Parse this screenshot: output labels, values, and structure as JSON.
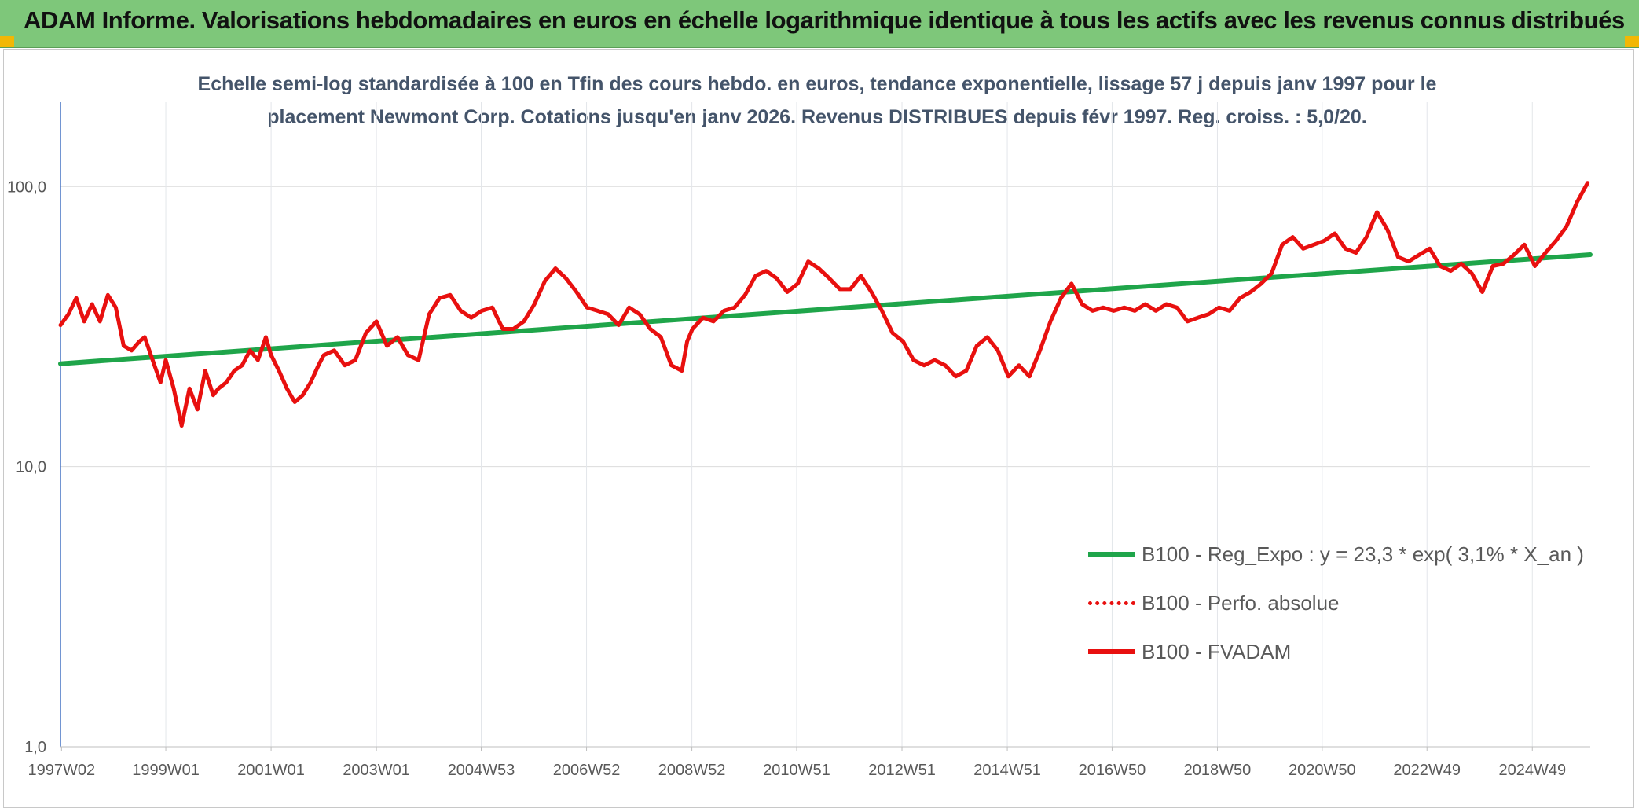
{
  "banner": {
    "title": "ADAM Informe. Valorisations hebdomadaires en euros en échelle logarithmique identique à tous les actifs avec les revenus connus distribués",
    "background": "#7ec77a",
    "corner_color": "#f2b705"
  },
  "subtitle": {
    "line1": "Echelle semi-log standardisée à 100 en Tfin des cours hebdo. en euros, tendance exponentielle, lissage 57 j depuis janv 1997 pour le",
    "line2": "placement Newmont Corp. Cotations jusqu'en janv 2026. Revenus DISTRIBUES depuis févr 1997. Reg. croiss. : 5,0/20."
  },
  "legend": [
    {
      "label": "B100 - Reg_Expo : y = 23,3 * exp( 3,1% *  X_an )",
      "color": "#1fa54a",
      "style": "solid"
    },
    {
      "label": "B100 - Perfo. absolue",
      "color": "#e8100f",
      "style": "dotted"
    },
    {
      "label": "B100 - FVADAM",
      "color": "#e8100f",
      "style": "solid"
    }
  ],
  "chart_data": {
    "type": "line",
    "scale": "log",
    "ylim": [
      1,
      200
    ],
    "y_ticks": [
      1,
      10,
      100
    ],
    "y_tick_labels": [
      "1,0",
      "10,0",
      "100,0"
    ],
    "xlim": [
      1997.0,
      2026.05
    ],
    "x_ticks": [
      1997.02,
      1999.0,
      2001.0,
      2003.0,
      2004.99,
      2006.99,
      2008.99,
      2010.98,
      2012.98,
      2014.98,
      2016.97,
      2018.97,
      2020.96,
      2022.95,
      2024.95
    ],
    "x_tick_labels": [
      "1997W02",
      "1999W01",
      "2001W01",
      "2003W01",
      "2004W53",
      "2006W52",
      "2008W52",
      "2010W51",
      "2012W51",
      "2014W51",
      "2016W50",
      "2018W50",
      "2020W50",
      "2022W49",
      "2024W49"
    ],
    "grid": true,
    "series": [
      {
        "name": "B100 - Reg_Expo : y = 23,3 * exp( 3,1% *  X_an )",
        "color": "#1fa54a",
        "x": [
          1997.0,
          2026.05
        ],
        "values": [
          23.3,
          57.1
        ]
      },
      {
        "name": "B100 - FVADAM",
        "color": "#e8100f",
        "x": [
          1997.0,
          1997.15,
          1997.3,
          1997.45,
          1997.6,
          1997.75,
          1997.9,
          1998.05,
          1998.2,
          1998.35,
          1998.5,
          1998.6,
          1998.75,
          1998.9,
          1999.0,
          1999.15,
          1999.3,
          1999.45,
          1999.6,
          1999.75,
          1999.9,
          2000.0,
          2000.15,
          2000.3,
          2000.45,
          2000.6,
          2000.75,
          2000.9,
          2001.0,
          2001.15,
          2001.3,
          2001.45,
          2001.6,
          2001.75,
          2001.9,
          2002.0,
          2002.2,
          2002.4,
          2002.6,
          2002.8,
          2003.0,
          2003.2,
          2003.4,
          2003.6,
          2003.8,
          2004.0,
          2004.2,
          2004.4,
          2004.6,
          2004.8,
          2005.0,
          2005.2,
          2005.4,
          2005.6,
          2005.8,
          2006.0,
          2006.2,
          2006.4,
          2006.6,
          2006.8,
          2007.0,
          2007.2,
          2007.4,
          2007.6,
          2007.8,
          2008.0,
          2008.2,
          2008.4,
          2008.6,
          2008.8,
          2008.9,
          2009.0,
          2009.2,
          2009.4,
          2009.6,
          2009.8,
          2010.0,
          2010.2,
          2010.4,
          2010.6,
          2010.8,
          2011.0,
          2011.2,
          2011.4,
          2011.6,
          2011.8,
          2012.0,
          2012.2,
          2012.4,
          2012.6,
          2012.8,
          2013.0,
          2013.2,
          2013.4,
          2013.6,
          2013.8,
          2014.0,
          2014.2,
          2014.4,
          2014.6,
          2014.8,
          2015.0,
          2015.2,
          2015.4,
          2015.6,
          2015.8,
          2016.0,
          2016.2,
          2016.4,
          2016.6,
          2016.8,
          2017.0,
          2017.2,
          2017.4,
          2017.6,
          2017.8,
          2018.0,
          2018.2,
          2018.4,
          2018.6,
          2018.8,
          2019.0,
          2019.2,
          2019.4,
          2019.6,
          2019.8,
          2020.0,
          2020.2,
          2020.4,
          2020.6,
          2020.8,
          2021.0,
          2021.2,
          2021.4,
          2021.6,
          2021.8,
          2022.0,
          2022.2,
          2022.4,
          2022.6,
          2022.8,
          2023.0,
          2023.2,
          2023.4,
          2023.6,
          2023.8,
          2024.0,
          2024.2,
          2024.4,
          2024.6,
          2024.8,
          2025.0,
          2025.2,
          2025.4,
          2025.6,
          2025.8,
          2026.0
        ],
        "values": [
          32,
          35,
          40,
          33,
          38,
          33,
          41,
          37,
          27,
          26,
          28,
          29,
          24,
          20,
          24,
          19,
          14,
          19,
          16,
          22,
          18,
          19,
          20,
          22,
          23,
          26,
          24,
          29,
          25,
          22,
          19,
          17,
          18,
          20,
          23,
          25,
          26,
          23,
          24,
          30,
          33,
          27,
          29,
          25,
          24,
          35,
          40,
          41,
          36,
          34,
          36,
          37,
          31,
          31,
          33,
          38,
          46,
          51,
          47,
          42,
          37,
          36,
          35,
          32,
          37,
          35,
          31,
          29,
          23,
          22,
          28,
          31,
          34,
          33,
          36,
          37,
          41,
          48,
          50,
          47,
          42,
          45,
          54,
          51,
          47,
          43,
          43,
          48,
          42,
          36,
          30,
          28,
          24,
          23,
          24,
          23,
          21,
          22,
          27,
          29,
          26,
          21,
          23,
          21,
          26,
          33,
          40,
          45,
          38,
          36,
          37,
          36,
          37,
          36,
          38,
          36,
          38,
          37,
          33,
          34,
          35,
          37,
          36,
          40,
          42,
          45,
          49,
          62,
          66,
          60,
          62,
          64,
          68,
          60,
          58,
          66,
          81,
          70,
          56,
          54,
          57,
          60,
          52,
          50,
          53,
          49,
          42,
          52,
          53,
          57,
          62,
          52,
          58,
          64,
          72,
          88,
          103
        ]
      }
    ]
  }
}
